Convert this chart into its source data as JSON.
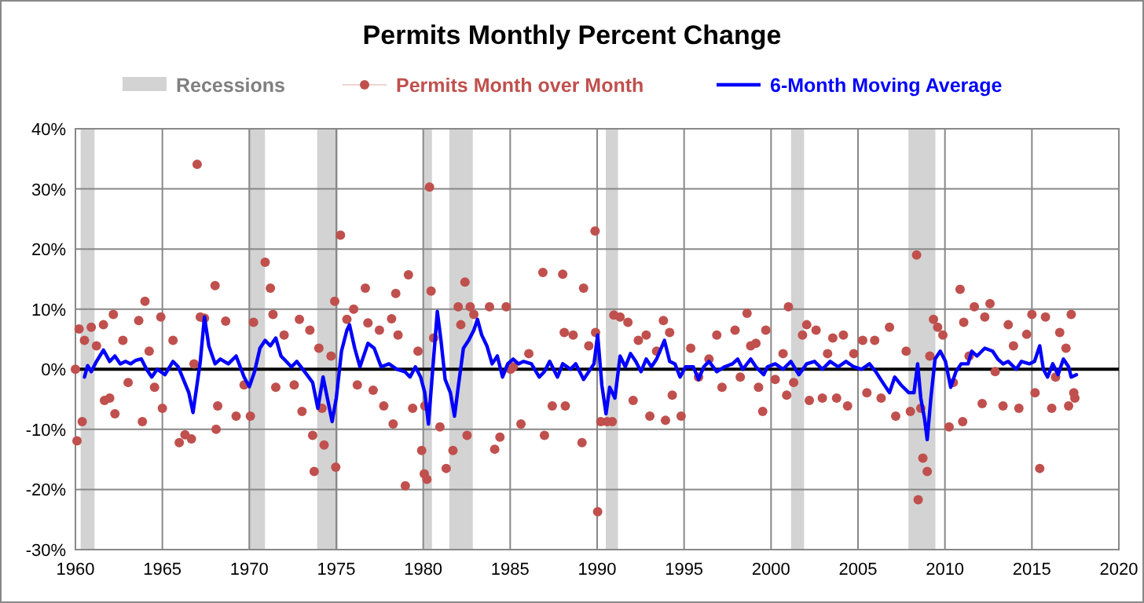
{
  "chart_data": {
    "type": "line",
    "title": "Permits Monthly Percent Change",
    "xlim": [
      1960,
      2020
    ],
    "xticks": [
      1960,
      1965,
      1970,
      1975,
      1980,
      1985,
      1990,
      1995,
      2000,
      2005,
      2010,
      2015,
      2020
    ],
    "ylim": [
      -30,
      40
    ],
    "yticks": [
      {
        "value": -30,
        "label": "-30%"
      },
      {
        "value": -20,
        "label": "-20%"
      },
      {
        "value": -10,
        "label": "-10%"
      },
      {
        "value": 0,
        "label": "0%"
      },
      {
        "value": 10,
        "label": "10%"
      },
      {
        "value": 20,
        "label": "20%"
      },
      {
        "value": 30,
        "label": "30%"
      },
      {
        "value": 40,
        "label": "40%"
      }
    ],
    "grid": true,
    "legend": "top",
    "bands": [
      {
        "axis": "x",
        "from": 1960.3,
        "to": 1961.1,
        "label": "Recessions",
        "color": "#d3d3d3"
      },
      {
        "axis": "x",
        "from": 1969.95,
        "to": 1970.9,
        "color": "#d3d3d3"
      },
      {
        "axis": "x",
        "from": 1973.9,
        "to": 1975.1,
        "color": "#d3d3d3"
      },
      {
        "axis": "x",
        "from": 1980.0,
        "to": 1980.5,
        "color": "#d3d3d3"
      },
      {
        "axis": "x",
        "from": 1981.5,
        "to": 1982.85,
        "color": "#d3d3d3"
      },
      {
        "axis": "x",
        "from": 1990.5,
        "to": 1991.2,
        "color": "#d3d3d3"
      },
      {
        "axis": "x",
        "from": 2001.15,
        "to": 2001.9,
        "color": "#d3d3d3"
      },
      {
        "axis": "x",
        "from": 2007.9,
        "to": 2009.45,
        "color": "#d3d3d3"
      }
    ],
    "ref_lines": [
      {
        "axis": "y",
        "value": 0,
        "color": "#000000"
      }
    ],
    "series": [
      {
        "name": "Permits Month over Month",
        "type": "scatter",
        "marker": "circle",
        "color": "#c0504d",
        "x": [
          1960.0,
          1960.09,
          1960.21,
          1960.39,
          1960.52,
          1960.91,
          1961.21,
          1961.61,
          1961.67,
          1961.97,
          1962.18,
          1962.27,
          1962.73,
          1963.03,
          1963.64,
          1963.85,
          1964.0,
          1964.24,
          1964.55,
          1964.91,
          1965.0,
          1965.61,
          1965.97,
          1966.3,
          1966.67,
          1966.82,
          1967.0,
          1967.18,
          1967.42,
          1968.03,
          1968.09,
          1968.18,
          1968.64,
          1969.24,
          1969.7,
          1970.06,
          1970.24,
          1970.91,
          1971.21,
          1971.36,
          1971.52,
          1972.0,
          1972.58,
          1972.88,
          1973.03,
          1973.48,
          1973.64,
          1973.73,
          1974.0,
          1974.18,
          1974.3,
          1974.7,
          1974.91,
          1974.97,
          1975.24,
          1975.61,
          1976.0,
          1976.21,
          1976.67,
          1976.82,
          1977.12,
          1977.48,
          1977.73,
          1978.18,
          1978.27,
          1978.42,
          1978.55,
          1978.97,
          1979.15,
          1979.39,
          1979.7,
          1979.91,
          1980.09,
          1980.06,
          1980.21,
          1980.36,
          1980.45,
          1980.6,
          1980.96,
          1981.32,
          1981.71,
          1982.01,
          1982.16,
          1982.4,
          1982.52,
          1982.7,
          1982.91,
          1983.81,
          1984.11,
          1984.41,
          1984.77,
          1985.02,
          1985.17,
          1985.62,
          1986.07,
          1986.88,
          1986.97,
          1987.42,
          1988.02,
          1988.11,
          1988.17,
          1988.62,
          1989.13,
          1989.22,
          1989.52,
          1989.88,
          1989.91,
          1990.03,
          1990.21,
          1990.57,
          1990.87,
          1990.96,
          1991.32,
          1991.77,
          1992.07,
          1992.37,
          1992.82,
          1993.03,
          1993.42,
          1993.81,
          1993.93,
          1994.17,
          1994.32,
          1994.83,
          1995.38,
          1995.83,
          1996.43,
          1996.88,
          1997.18,
          1997.93,
          1998.23,
          1998.62,
          1998.83,
          1999.13,
          1999.28,
          1999.52,
          1999.7,
          2000.24,
          2000.69,
          2000.9,
          2001.0,
          2001.3,
          2001.81,
          2002.05,
          2002.2,
          2002.59,
          2002.95,
          2003.25,
          2003.55,
          2003.77,
          2004.16,
          2004.4,
          2004.76,
          2005.27,
          2005.51,
          2005.96,
          2006.33,
          2006.81,
          2007.17,
          2007.77,
          2008.01,
          2008.37,
          2008.46,
          2008.61,
          2008.73,
          2008.98,
          2009.13,
          2009.34,
          2009.58,
          2009.88,
          2010.24,
          2010.48,
          2010.87,
          2011.02,
          2011.08,
          2011.39,
          2011.69,
          2012.14,
          2012.29,
          2012.59,
          2012.89,
          2013.34,
          2013.64,
          2013.94,
          2014.25,
          2014.7,
          2015.0,
          2015.18,
          2015.45,
          2015.78,
          2016.14,
          2016.36,
          2016.6,
          2016.96,
          2017.11,
          2017.26,
          2017.41,
          2017.47
        ],
        "values": [
          0,
          -11.9,
          6.7,
          -8.7,
          4.8,
          7.0,
          3.9,
          7.4,
          -5.2,
          -4.8,
          9.1,
          -7.4,
          4.8,
          -2.2,
          8.1,
          -8.7,
          11.3,
          3.0,
          -3.0,
          8.7,
          -6.5,
          4.8,
          -12.2,
          -10.9,
          -11.6,
          0.9,
          34.1,
          8.7,
          8.5,
          13.9,
          -10.0,
          -6.1,
          8.0,
          -7.8,
          -2.6,
          -7.8,
          7.8,
          17.8,
          13.5,
          9.1,
          -3.0,
          5.7,
          -2.6,
          8.3,
          -7.0,
          6.5,
          -11.0,
          -17.0,
          3.5,
          -6.5,
          -12.6,
          2.2,
          11.3,
          -16.3,
          22.3,
          8.3,
          10.0,
          -2.6,
          13.5,
          7.7,
          -3.5,
          6.5,
          -6.1,
          8.4,
          -9.1,
          12.6,
          5.7,
          -19.4,
          15.7,
          -6.5,
          3.0,
          -13.5,
          -6.1,
          -17.4,
          -18.3,
          30.3,
          13.0,
          5.2,
          -9.6,
          -16.5,
          -13.5,
          10.4,
          7.4,
          14.5,
          -11.0,
          10.4,
          9.1,
          10.4,
          -13.3,
          -11.3,
          10.4,
          0,
          0.4,
          -9.1,
          2.6,
          16.1,
          -11.0,
          -6.1,
          15.8,
          6.1,
          -6.1,
          5.7,
          -12.2,
          13.5,
          3.9,
          23.0,
          6.1,
          -23.7,
          -8.7,
          -8.7,
          -8.7,
          9.0,
          8.7,
          7.8,
          -5.2,
          4.8,
          5.7,
          -7.8,
          3.0,
          8.1,
          -8.5,
          6.1,
          -4.3,
          -7.8,
          3.5,
          -1.3,
          1.7,
          5.7,
          -3.0,
          6.5,
          -1.3,
          9.3,
          3.9,
          4.3,
          -3.0,
          -7.0,
          6.5,
          -1.7,
          2.6,
          -4.3,
          10.4,
          -2.2,
          5.7,
          7.4,
          -5.2,
          6.5,
          -4.8,
          2.6,
          5.2,
          -4.8,
          5.7,
          -6.1,
          2.6,
          4.8,
          -3.9,
          4.8,
          -4.8,
          7.0,
          -7.8,
          3.0,
          -7.0,
          19.0,
          -21.7,
          -6.5,
          -14.8,
          -17.0,
          2.2,
          8.3,
          7.0,
          5.7,
          -9.6,
          -2.2,
          13.3,
          -8.7,
          7.8,
          2.2,
          10.4,
          -5.7,
          8.7,
          10.9,
          -0.4,
          -6.1,
          7.4,
          3.9,
          -6.5,
          5.8,
          9.1,
          -3.9,
          -16.5,
          8.7,
          -6.5,
          -1.3,
          6.1,
          3.5,
          -6.1,
          9.1,
          -3.9,
          -4.8
        ]
      },
      {
        "name": "6-Month Moving Average",
        "marker": "none",
        "color": "#0000ff",
        "x": [
          1960.52,
          1960.7,
          1960.91,
          1961.21,
          1961.61,
          1961.97,
          1962.27,
          1962.58,
          1962.88,
          1963.18,
          1963.48,
          1963.79,
          1964.09,
          1964.39,
          1964.7,
          1965.15,
          1965.61,
          1965.91,
          1966.21,
          1966.52,
          1966.76,
          1966.97,
          1967.18,
          1967.42,
          1967.67,
          1968.03,
          1968.33,
          1968.79,
          1969.24,
          1969.7,
          1970.0,
          1970.3,
          1970.61,
          1970.91,
          1971.21,
          1971.52,
          1971.82,
          1972.12,
          1972.42,
          1972.73,
          1973.18,
          1973.64,
          1973.94,
          1974.24,
          1974.55,
          1974.76,
          1975.0,
          1975.3,
          1975.61,
          1975.76,
          1976.06,
          1976.36,
          1976.82,
          1977.18,
          1977.58,
          1978.03,
          1978.48,
          1978.94,
          1979.24,
          1979.55,
          1979.85,
          1980.09,
          1980.3,
          1980.51,
          1980.81,
          1981.02,
          1981.26,
          1981.56,
          1981.8,
          1982.01,
          1982.31,
          1982.61,
          1982.91,
          1983.12,
          1983.36,
          1983.66,
          1983.96,
          1984.26,
          1984.56,
          1984.86,
          1985.17,
          1985.47,
          1985.77,
          1986.22,
          1986.67,
          1986.97,
          1987.27,
          1987.72,
          1988.02,
          1988.47,
          1988.77,
          1989.22,
          1989.52,
          1989.82,
          1990.03,
          1990.27,
          1990.51,
          1990.72,
          1991.02,
          1991.32,
          1991.62,
          1991.92,
          1992.22,
          1992.52,
          1992.82,
          1993.12,
          1993.42,
          1993.87,
          1994.17,
          1994.47,
          1994.77,
          1995.08,
          1995.53,
          1995.83,
          1996.13,
          1996.43,
          1996.88,
          1997.33,
          1997.78,
          1998.08,
          1998.38,
          1998.83,
          1999.13,
          1999.58,
          1999.79,
          2000.24,
          2000.69,
          2001.14,
          2001.6,
          2002.05,
          2002.5,
          2002.95,
          2003.4,
          2003.86,
          2004.31,
          2004.76,
          2005.21,
          2005.66,
          2006.02,
          2006.42,
          2006.81,
          2007.11,
          2007.47,
          2007.92,
          2008.22,
          2008.43,
          2008.61,
          2008.83,
          2008.98,
          2009.19,
          2009.43,
          2009.73,
          2010.03,
          2010.33,
          2010.63,
          2010.93,
          2011.33,
          2011.54,
          2011.84,
          2012.29,
          2012.74,
          2013.04,
          2013.34,
          2013.64,
          2014.1,
          2014.4,
          2014.85,
          2015.15,
          2015.45,
          2015.66,
          2015.9,
          2016.2,
          2016.51,
          2016.81,
          2017.11,
          2017.26,
          2017.56
        ],
        "values": [
          -1.3,
          0.6,
          -0.4,
          1.3,
          3.2,
          1.3,
          2.2,
          0.9,
          1.3,
          0.9,
          1.5,
          1.7,
          0,
          -1.3,
          0,
          -0.9,
          1.3,
          0.4,
          -1.7,
          -3.9,
          -7.2,
          -3.0,
          1.3,
          8.7,
          3.9,
          0.9,
          1.7,
          0.9,
          2.2,
          -1.3,
          -2.9,
          -0.4,
          3.5,
          4.8,
          3.9,
          5.2,
          2.2,
          1.3,
          0.4,
          1.3,
          -0.4,
          -2.2,
          -6.5,
          -1.3,
          -5.7,
          -8.7,
          -4.8,
          3.0,
          6.5,
          7.4,
          3.5,
          0.4,
          4.3,
          3.5,
          0.4,
          0.9,
          0,
          -0.4,
          -1.3,
          0.4,
          -1.3,
          -3.9,
          -9.1,
          -1.3,
          9.6,
          4.8,
          -1.7,
          -3.9,
          -7.8,
          -3.0,
          3.5,
          4.8,
          6.5,
          8.3,
          5.7,
          3.9,
          0.9,
          2.2,
          -1.3,
          0.9,
          1.7,
          0.9,
          1.3,
          0.9,
          -1.3,
          -0.4,
          1.3,
          -1.3,
          0.9,
          0,
          0.9,
          -1.7,
          -0.4,
          0.9,
          5.7,
          -2.6,
          -7.4,
          -3.0,
          -4.8,
          2.2,
          0.4,
          2.6,
          1.3,
          -0.4,
          1.7,
          0.4,
          1.7,
          4.8,
          1.3,
          0.9,
          -1.3,
          0.4,
          0.4,
          -1.7,
          0.4,
          1.3,
          -0.4,
          0.4,
          0.9,
          1.7,
          0,
          1.7,
          0.4,
          -0.9,
          0.4,
          0.9,
          0,
          1.3,
          -0.9,
          0.9,
          1.3,
          0,
          1.3,
          0.4,
          1.3,
          0.4,
          0,
          0.9,
          -0.4,
          -2.2,
          -3.9,
          -1.3,
          -2.6,
          -3.9,
          -3.9,
          0.9,
          -4.8,
          -8.3,
          -11.7,
          -4.8,
          1.7,
          3.0,
          1.3,
          -3.0,
          -0.4,
          0.9,
          0.9,
          3.0,
          2.2,
          3.5,
          3.0,
          1.7,
          0.9,
          1.3,
          0,
          1.3,
          0.9,
          1.3,
          3.9,
          0,
          -1.3,
          0.9,
          -0.9,
          1.7,
          0.4,
          -1.3,
          -0.9
        ]
      }
    ]
  }
}
